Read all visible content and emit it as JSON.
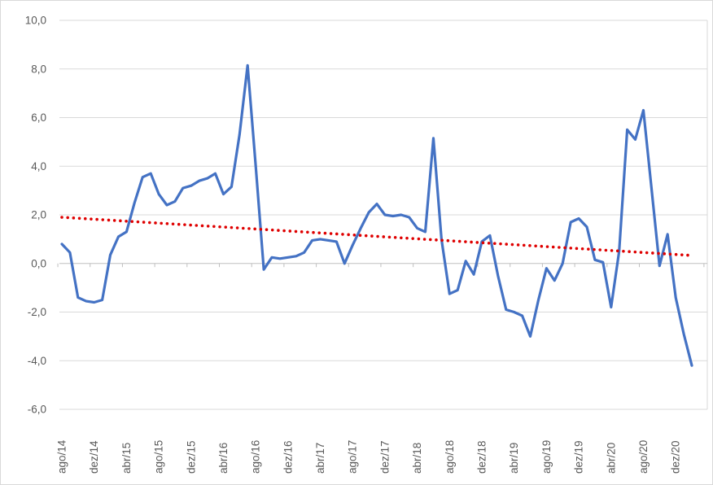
{
  "chart_data": {
    "type": "line",
    "title": "",
    "legend": "none",
    "grid": true,
    "ylim": [
      -6,
      10
    ],
    "y_tick_step": 2,
    "y_tick_labels": [
      "10,0",
      "8,0",
      "6,0",
      "4,0",
      "2,0",
      "0,0",
      "-2,0",
      "-4,0",
      "-6,0"
    ],
    "x_tick_interval_months": 4,
    "x_tick_labels": [
      "ago/14",
      "dez/14",
      "abr/15",
      "ago/15",
      "dez/15",
      "abr/16",
      "ago/16",
      "dez/16",
      "abr/17",
      "ago/17",
      "dez/17",
      "abr/18",
      "ago/18",
      "dez/18",
      "abr/19",
      "ago/19",
      "dez/19",
      "abr/20",
      "ago/20",
      "dez/20"
    ],
    "categories": [
      "ago/14",
      "set/14",
      "out/14",
      "nov/14",
      "dez/14",
      "jan/15",
      "fev/15",
      "mar/15",
      "abr/15",
      "mai/15",
      "jun/15",
      "jul/15",
      "ago/15",
      "set/15",
      "out/15",
      "nov/15",
      "dez/15",
      "jan/16",
      "fev/16",
      "mar/16",
      "abr/16",
      "mai/16",
      "jun/16",
      "jul/16",
      "ago/16",
      "set/16",
      "out/16",
      "nov/16",
      "dez/16",
      "jan/17",
      "fev/17",
      "mar/17",
      "abr/17",
      "mai/17",
      "jun/17",
      "jul/17",
      "ago/17",
      "set/17",
      "out/17",
      "nov/17",
      "dez/17",
      "jan/18",
      "fev/18",
      "mar/18",
      "abr/18",
      "mai/18",
      "jun/18",
      "jul/18",
      "ago/18",
      "set/18",
      "out/18",
      "nov/18",
      "dez/18",
      "jan/19",
      "fev/19",
      "mar/19",
      "abr/19",
      "mai/19",
      "jun/19",
      "jul/19",
      "ago/19",
      "set/19",
      "out/19",
      "nov/19",
      "dez/19",
      "jan/20",
      "fev/20",
      "mar/20",
      "abr/20",
      "mai/20",
      "jun/20",
      "jul/20",
      "ago/20",
      "set/20",
      "out/20",
      "nov/20",
      "dez/20",
      "jan/21",
      "fev/21"
    ],
    "series": [
      {
        "color": "#4472C4",
        "values": [
          0.8,
          0.45,
          -1.4,
          -1.55,
          -1.6,
          -1.5,
          0.35,
          1.1,
          1.3,
          2.5,
          3.55,
          3.7,
          2.85,
          2.4,
          2.55,
          3.1,
          3.2,
          3.4,
          3.5,
          3.7,
          2.85,
          3.15,
          5.3,
          8.15,
          4.0,
          -0.25,
          0.25,
          0.2,
          0.25,
          0.3,
          0.45,
          0.95,
          1.0,
          0.95,
          0.9,
          0.0,
          0.75,
          1.45,
          2.1,
          2.45,
          2.0,
          1.95,
          2.0,
          1.9,
          1.45,
          1.3,
          5.15,
          1.0,
          -1.25,
          -1.1,
          0.1,
          -0.45,
          0.9,
          1.15,
          -0.5,
          -1.9,
          -2.0,
          -2.15,
          -3.0,
          -1.5,
          -0.2,
          -0.7,
          0.0,
          1.7,
          1.85,
          1.5,
          0.15,
          0.05,
          -1.8,
          0.5,
          5.5,
          5.1,
          6.3,
          3.1,
          -0.1,
          1.2,
          -1.4,
          -2.9,
          -4.2
        ]
      }
    ],
    "trendline": {
      "style": "dotted",
      "color": "#DF0000",
      "start_value": 1.9,
      "end_value": 0.33
    },
    "decimal_separator": ",",
    "colors": {
      "axis_text": "#595959",
      "gridline": "#D9D9D9",
      "axis_line": "#BFBFBF",
      "background": "#FFFFFF",
      "frame_border": "#D9D9D9"
    }
  }
}
